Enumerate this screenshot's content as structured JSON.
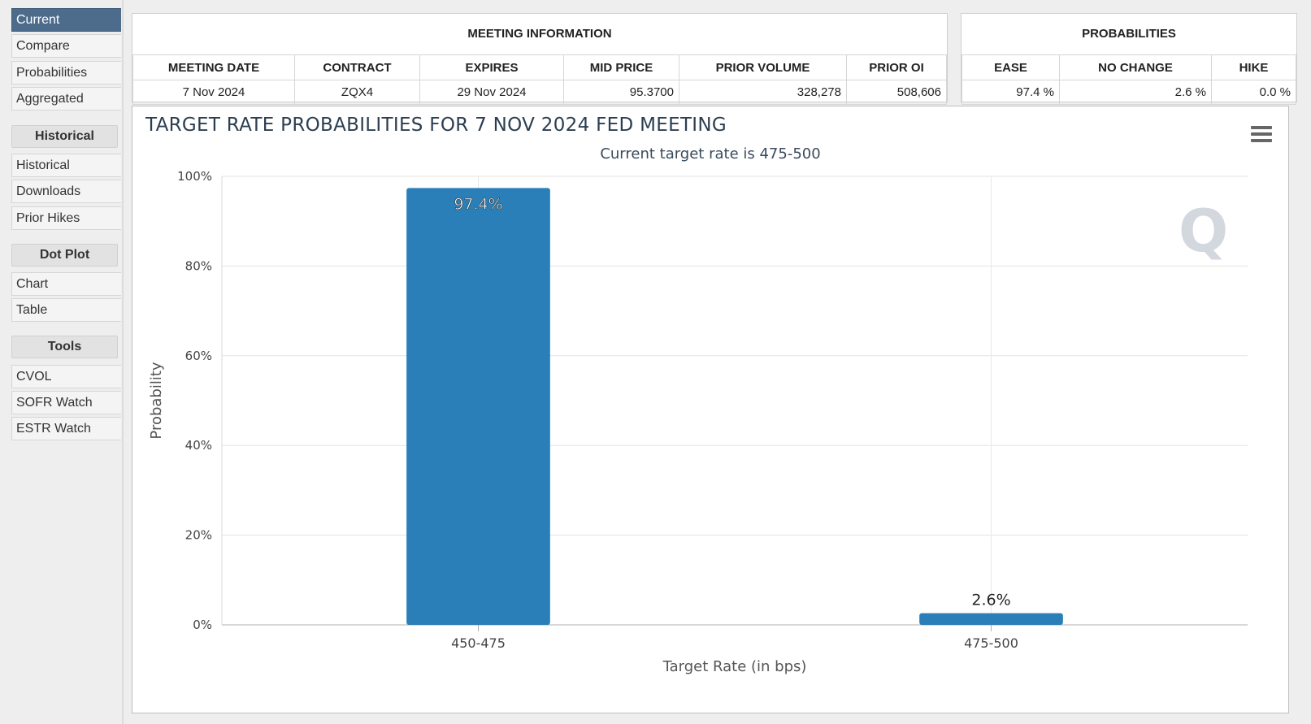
{
  "sidebar": {
    "items_top": [
      {
        "label": "Current",
        "active": true
      },
      {
        "label": "Compare"
      },
      {
        "label": "Probabilities"
      },
      {
        "label": "Aggregated"
      }
    ],
    "historical_header": "Historical",
    "items_historical": [
      {
        "label": "Historical"
      },
      {
        "label": "Downloads"
      },
      {
        "label": "Prior Hikes"
      }
    ],
    "dotplot_header": "Dot Plot",
    "items_dotplot": [
      {
        "label": "Chart"
      },
      {
        "label": "Table"
      }
    ],
    "tools_header": "Tools",
    "items_tools": [
      {
        "label": "CVOL"
      },
      {
        "label": "SOFR Watch"
      },
      {
        "label": "ESTR Watch"
      }
    ]
  },
  "meeting_info": {
    "title": "MEETING INFORMATION",
    "headers": [
      "MEETING DATE",
      "CONTRACT",
      "EXPIRES",
      "MID PRICE",
      "PRIOR VOLUME",
      "PRIOR OI"
    ],
    "row": [
      "7 Nov 2024",
      "ZQX4",
      "29 Nov 2024",
      "95.3700",
      "328,278",
      "508,606"
    ]
  },
  "probabilities": {
    "title": "PROBABILITIES",
    "headers": [
      "EASE",
      "NO CHANGE",
      "HIKE"
    ],
    "row": [
      "97.4 %",
      "2.6 %",
      "0.0 %"
    ]
  },
  "chart_data": {
    "type": "bar",
    "title": "TARGET RATE PROBABILITIES FOR 7 NOV 2024 FED MEETING",
    "subtitle": "Current target rate is 475-500",
    "xlabel": "Target Rate (in bps)",
    "ylabel": "Probability",
    "categories": [
      "450-475",
      "475-500"
    ],
    "values": [
      97.4,
      2.6
    ],
    "data_labels": [
      "97.4%",
      "2.6%"
    ],
    "yticks": [
      "0%",
      "20%",
      "40%",
      "60%",
      "80%",
      "100%"
    ],
    "ylim": [
      0,
      100
    ],
    "bar_color": "#2a7fb8",
    "grid": true,
    "watermark": "Q"
  }
}
